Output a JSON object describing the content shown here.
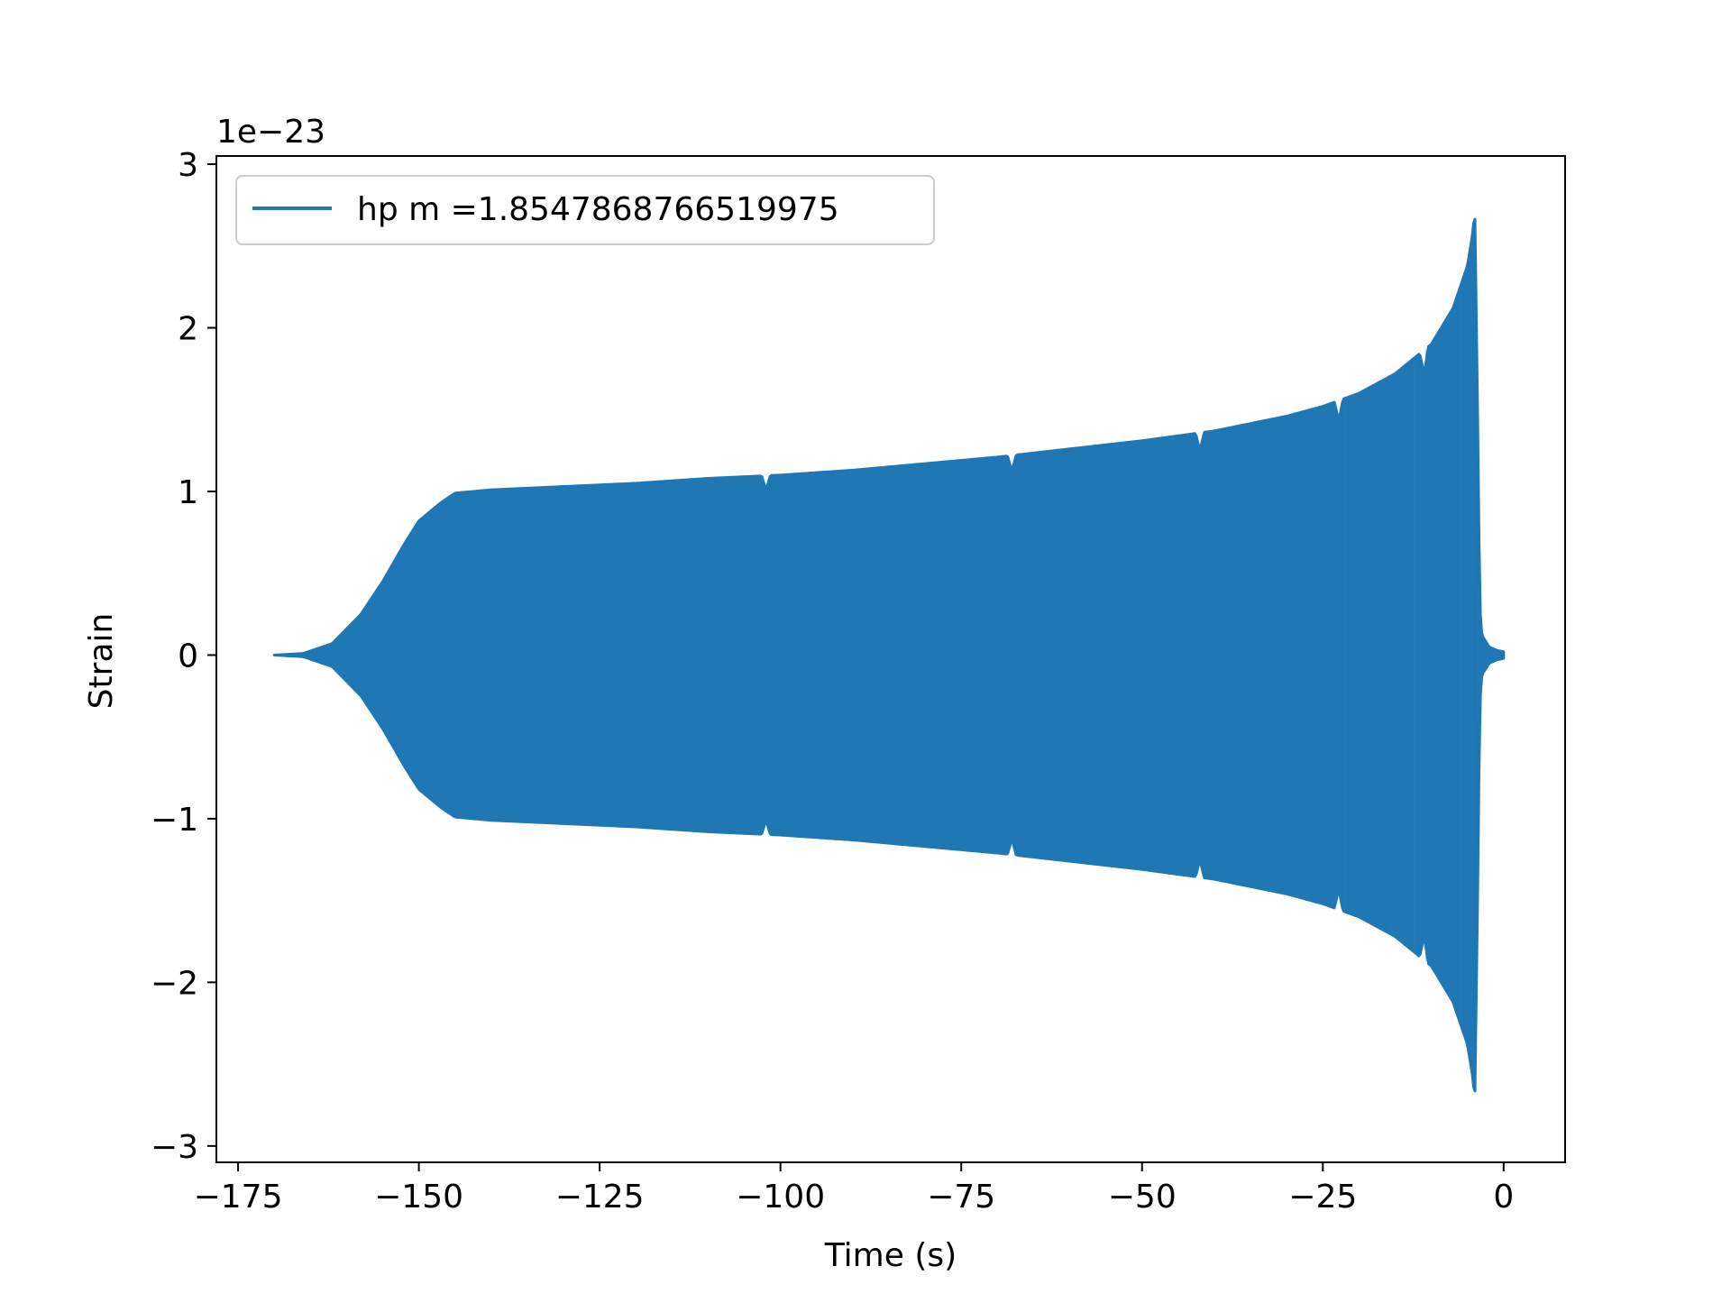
{
  "chart_data": {
    "type": "line",
    "title": "",
    "xlabel": "Time (s)",
    "ylabel": "Strain",
    "offset_label": "1e−23",
    "xlim": [
      -178,
      8.5
    ],
    "ylim": [
      -3.1,
      3.05
    ],
    "x_ticks": [
      -175,
      -150,
      -125,
      -100,
      -75,
      -50,
      -25,
      0
    ],
    "x_tick_labels": [
      "−175",
      "−150",
      "−125",
      "−100",
      "−75",
      "−50",
      "−25",
      "0"
    ],
    "y_ticks": [
      -3,
      -2,
      -1,
      0,
      1,
      2,
      3
    ],
    "y_tick_labels": [
      "−3",
      "−2",
      "−1",
      "0",
      "1",
      "2",
      "3"
    ],
    "grid": false,
    "legend_position": "upper-left",
    "series": [
      {
        "name": "hp m =1.8547868766519975",
        "color": "#1f77b4",
        "style": "dense-oscillation-envelope",
        "x": [
          -170,
          -166,
          -162,
          -158,
          -155,
          -152,
          -150,
          -147,
          -145,
          -140,
          -130,
          -120,
          -110,
          -100,
          -90,
          -80,
          -70,
          -60,
          -50,
          -40,
          -30,
          -25,
          -20,
          -15,
          -10,
          -7,
          -5,
          -4.2,
          -4,
          -3.6,
          -3.3,
          -3,
          -2,
          -1,
          0
        ],
        "upper": [
          0.0,
          0.01,
          0.07,
          0.25,
          0.45,
          0.68,
          0.82,
          0.93,
          0.99,
          1.01,
          1.03,
          1.05,
          1.08,
          1.1,
          1.13,
          1.17,
          1.21,
          1.26,
          1.31,
          1.37,
          1.46,
          1.52,
          1.6,
          1.72,
          1.9,
          2.12,
          2.38,
          2.6,
          2.77,
          1.5,
          0.3,
          0.12,
          0.05,
          0.03,
          0.02
        ],
        "lower": [
          0.0,
          -0.01,
          -0.07,
          -0.25,
          -0.45,
          -0.68,
          -0.82,
          -0.93,
          -0.99,
          -1.01,
          -1.03,
          -1.05,
          -1.08,
          -1.1,
          -1.13,
          -1.17,
          -1.21,
          -1.26,
          -1.31,
          -1.37,
          -1.46,
          -1.52,
          -1.6,
          -1.72,
          -1.9,
          -2.12,
          -2.38,
          -2.6,
          -2.77,
          -1.5,
          -0.3,
          -0.12,
          -0.05,
          -0.03,
          -0.02
        ],
        "dips": [
          -102,
          -68,
          -42,
          -22.8,
          -11
        ]
      }
    ]
  }
}
